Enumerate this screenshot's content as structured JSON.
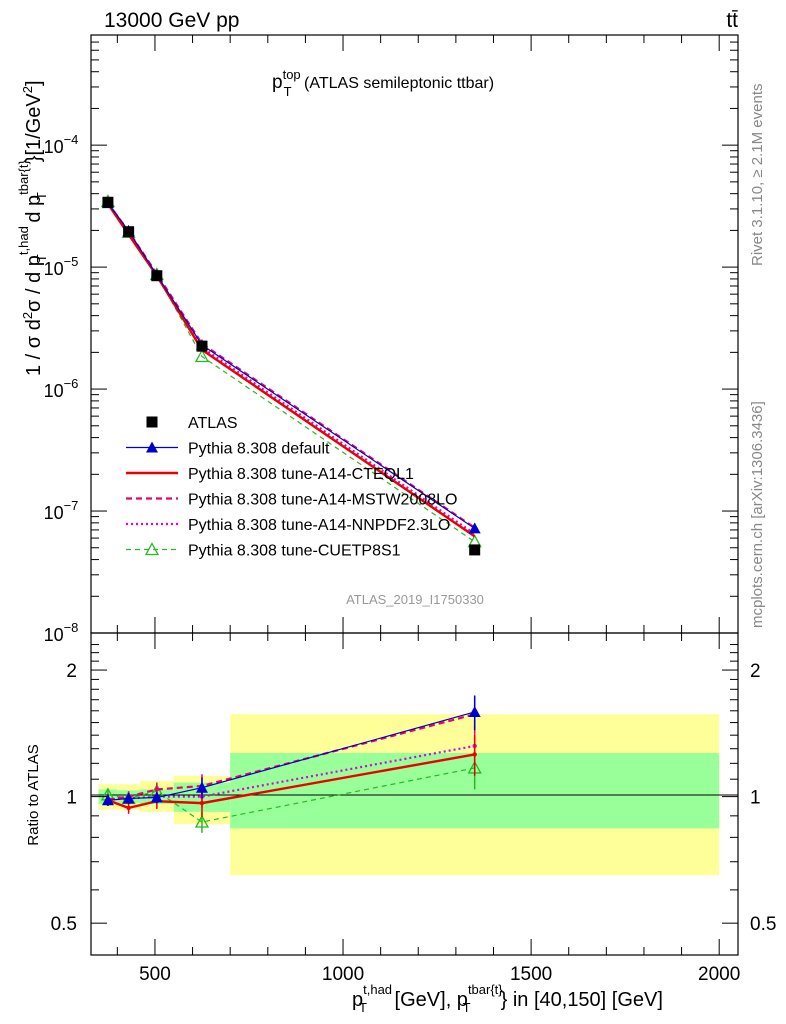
{
  "header": {
    "left": "13000 GeV pp",
    "right": "tt̄"
  },
  "side_labels": {
    "rivet": "Rivet 3.1.10, ≥ 2.1M events",
    "mcplots": "mcplots.cern.ch [arXiv:1306.3436]"
  },
  "chart_data": [
    {
      "panel": "main",
      "type": "line",
      "title_main": "p",
      "title_sub": "T",
      "title_sup": "top",
      "title_rest": " (ATLAS semileptonic ttbar)",
      "watermark": "ATLAS_2019_I1750330",
      "ylabel": "1 / σ d²σ / d p_T^{t,had} d p_T^{tbar{t}} [1/GeV²]",
      "yscale": "log",
      "ylim": [
        1e-08,
        0.0008
      ],
      "xlim": [
        330,
        2050
      ],
      "ytick_labels": [
        {
          "value": 1e-08,
          "mantissa": "10",
          "exp": "−8"
        },
        {
          "value": 1e-07,
          "mantissa": "10",
          "exp": "−7"
        },
        {
          "value": 1e-06,
          "mantissa": "10",
          "exp": "−6"
        },
        {
          "value": 1e-05,
          "mantissa": "10",
          "exp": "−5"
        },
        {
          "value": 0.0001,
          "mantissa": "10",
          "exp": "−4"
        }
      ],
      "legend_position": "middle-left",
      "series": [
        {
          "name": "ATLAS",
          "color": "#000000",
          "style": "data",
          "x": [
            375,
            430,
            505,
            625,
            1350
          ],
          "y": [
            3.4e-05,
            1.95e-05,
            8.5e-06,
            2.25e-06,
            4.8e-08
          ]
        },
        {
          "name": "Pythia 8.308 default",
          "color": "#0000cc",
          "style": "solid-triangle",
          "x": [
            375,
            430,
            505,
            625,
            1350
          ],
          "y": [
            3.35e-05,
            1.98e-05,
            8.6e-06,
            2.3e-06,
            7.2e-08
          ]
        },
        {
          "name": "Pythia 8.308 tune-A14-CTEQL1",
          "color": "#ee0000",
          "style": "solid-thick",
          "x": [
            375,
            430,
            505,
            625,
            1350
          ],
          "y": [
            3.3e-05,
            1.85e-05,
            8.5e-06,
            2.1e-06,
            6.2e-08
          ]
        },
        {
          "name": "Pythia 8.308 tune-A14-MSTW2008LO",
          "color": "#ee0066",
          "style": "dashed",
          "x": [
            375,
            430,
            505,
            625,
            1350
          ],
          "y": [
            3.35e-05,
            1.96e-05,
            8.8e-06,
            2.35e-06,
            7.3e-08
          ]
        },
        {
          "name": "Pythia 8.308 tune-A14-NNPDF2.3LO",
          "color": "#dd00dd",
          "style": "dotted",
          "x": [
            375,
            430,
            505,
            625,
            1350
          ],
          "y": [
            3.35e-05,
            1.94e-05,
            8.6e-06,
            2.2e-06,
            6.5e-08
          ]
        },
        {
          "name": "Pythia 8.308 tune-CUETP8S1",
          "color": "#22bb22",
          "style": "dashed-open-triangle",
          "x": [
            375,
            430,
            505,
            625,
            1350
          ],
          "y": [
            3.45e-05,
            1.93e-05,
            8.7e-06,
            1.85e-06,
            5.6e-08
          ]
        }
      ]
    },
    {
      "panel": "ratio",
      "type": "line",
      "ylabel": "Ratio to ATLAS",
      "xlabel": "p_T^{t,had} [GeV], p_T^{tbar{t}} in [40,150] [GeV]",
      "yscale": "log",
      "ylim": [
        0.42,
        2.45
      ],
      "xlim": [
        330,
        2050
      ],
      "yticks": [
        0.5,
        1,
        2
      ],
      "ytick_labels": [
        "0.5",
        "1",
        "2"
      ],
      "xticks": [
        500,
        1000,
        1500,
        2000
      ],
      "xtick_labels": [
        "500",
        "1000",
        "1500",
        "2000"
      ],
      "bands": [
        {
          "x0": 350,
          "x1": 400,
          "inner": [
            0.96,
            1.04
          ],
          "outer": [
            0.93,
            1.07
          ]
        },
        {
          "x0": 400,
          "x1": 460,
          "inner": [
            0.965,
            1.035
          ],
          "outer": [
            0.93,
            1.07
          ]
        },
        {
          "x0": 460,
          "x1": 550,
          "inner": [
            0.96,
            1.04
          ],
          "outer": [
            0.92,
            1.09
          ]
        },
        {
          "x0": 550,
          "x1": 700,
          "inner": [
            0.92,
            1.08
          ],
          "outer": [
            0.86,
            1.12
          ]
        },
        {
          "x0": 700,
          "x1": 2000,
          "inner": [
            0.84,
            1.27
          ],
          "outer": [
            0.65,
            1.57
          ]
        }
      ],
      "series": [
        {
          "name": "Pythia 8.308 default",
          "x": [
            375,
            430,
            505,
            625,
            1350
          ],
          "y": [
            0.98,
            0.99,
            0.995,
            1.05,
            1.59
          ],
          "err": [
            0.03,
            0.03,
            0.03,
            0.06,
            0.15
          ]
        },
        {
          "name": "Pythia 8.308 tune-A14-CTEQL1",
          "x": [
            375,
            430,
            505,
            625,
            1350
          ],
          "y": [
            0.98,
            0.94,
            0.975,
            0.965,
            1.26
          ],
          "err": [
            0.03,
            0.03,
            0.04,
            0.07,
            0.14
          ]
        },
        {
          "name": "Pythia 8.308 tune-A14-MSTW2008LO",
          "x": [
            375,
            430,
            505,
            625,
            1350
          ],
          "y": [
            0.985,
            1.0,
            1.04,
            1.06,
            1.57
          ],
          "err": [
            0.03,
            0.03,
            0.04,
            0.07,
            0.15
          ]
        },
        {
          "name": "Pythia 8.308 tune-A14-NNPDF2.3LO",
          "x": [
            375,
            430,
            505,
            625,
            1350
          ],
          "y": [
            0.985,
            0.99,
            1.0,
            1.0,
            1.32
          ],
          "err": [
            0.03,
            0.03,
            0.04,
            0.06,
            0.15
          ]
        },
        {
          "name": "Pythia 8.308 tune-CUETP8S1",
          "x": [
            375,
            430,
            505,
            625,
            1350
          ],
          "y": [
            1.01,
            0.99,
            1.03,
            0.87,
            1.17
          ],
          "err": [
            0.03,
            0.03,
            0.04,
            0.05,
            0.13
          ]
        }
      ]
    }
  ]
}
